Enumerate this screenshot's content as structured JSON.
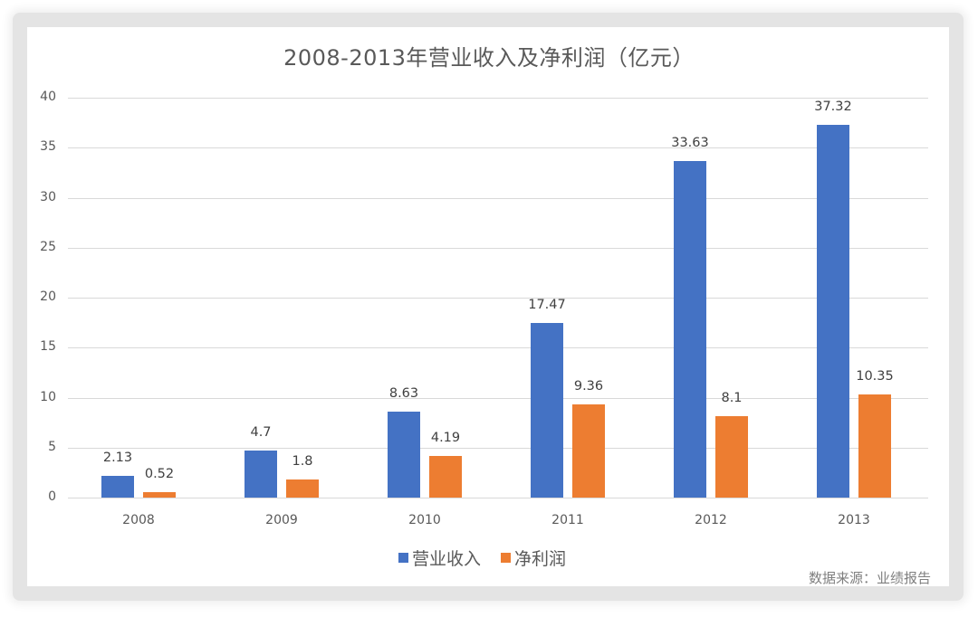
{
  "chart_data": {
    "type": "bar",
    "title": "2008-2013年营业收入及净利润（亿元）",
    "xlabel": "",
    "ylabel": "",
    "categories": [
      "2008",
      "2009",
      "2010",
      "2011",
      "2012",
      "2013"
    ],
    "series": [
      {
        "name": "营业收入",
        "color": "#4472c4",
        "values": [
          2.13,
          4.7,
          8.63,
          17.47,
          33.63,
          37.32
        ],
        "labels": [
          "2.13",
          "4.7",
          "8.63",
          "17.47",
          "33.63",
          "37.32"
        ]
      },
      {
        "name": "净利润",
        "color": "#ed7d31",
        "values": [
          0.52,
          1.8,
          4.19,
          9.36,
          8.1,
          10.35
        ],
        "labels": [
          "0.52",
          "1.8",
          "4.19",
          "9.36",
          "8.1",
          "10.35"
        ]
      }
    ],
    "ylim": [
      0,
      40
    ],
    "yticks": [
      "0",
      "5",
      "10",
      "15",
      "20",
      "25",
      "30",
      "35",
      "40"
    ],
    "grid": true,
    "legend_position": "bottom",
    "data_labels": true
  },
  "legend": {
    "items": [
      {
        "label": "营业收入",
        "color": "#4472c4"
      },
      {
        "label": "净利润",
        "color": "#ed7d31"
      }
    ]
  },
  "footer": {
    "source": "数据来源：业绩报告"
  }
}
